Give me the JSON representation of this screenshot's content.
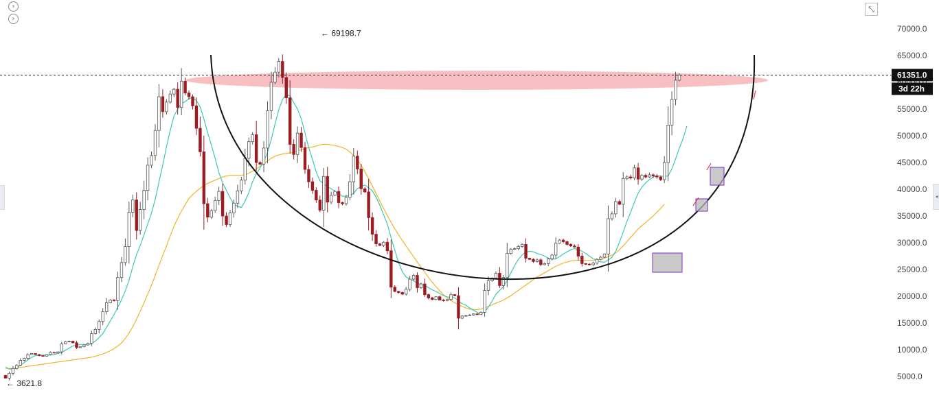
{
  "chart_data": {
    "type": "candlestick",
    "y_axis": {
      "side": "right",
      "ylim": [
        3000,
        72000
      ],
      "ticks": [
        5000,
        10000,
        15000,
        20000,
        25000,
        30000,
        35000,
        40000,
        45000,
        50000,
        55000,
        60000,
        65000,
        70000
      ],
      "tick_labels": [
        "5000.0",
        "10000.0",
        "15000.0",
        "20000.0",
        "25000.0",
        "30000.0",
        "35000.0",
        "40000.0",
        "45000.0",
        "50000.0",
        "55000.0",
        "60000.0",
        "65000.0",
        "70000.0"
      ]
    },
    "current_price": {
      "label": "61351.0",
      "value": 61351,
      "countdown": "3d 22h"
    },
    "annotations": [
      {
        "label": "← 69198.7",
        "value": 69198.7,
        "type": "high"
      },
      {
        "label": "← 3621.8",
        "value": 3621.8,
        "type": "low"
      }
    ],
    "close": [
      4700,
      5600,
      6500,
      7100,
      8000,
      8400,
      9100,
      9300,
      9100,
      8900,
      8800,
      9100,
      9500,
      9400,
      9600,
      11100,
      11500,
      11600,
      11300,
      10400,
      10600,
      10900,
      11200,
      13000,
      13800,
      15300,
      17100,
      18800,
      19300,
      19200,
      23500,
      26300,
      29300,
      35700,
      38000,
      32300,
      36200,
      39800,
      44500,
      46300,
      51000,
      57300,
      54500,
      56300,
      57800,
      58700,
      55300,
      60200,
      58000,
      57300,
      55600,
      51400,
      47000,
      37300,
      34800,
      36000,
      37900,
      39600,
      35000,
      33400,
      35600,
      37400,
      39700,
      41700,
      45800,
      48900,
      50200,
      45000,
      44700,
      47700,
      54700,
      60000,
      61900,
      63900,
      60900,
      57100,
      48400,
      46500,
      50500,
      47800,
      43700,
      41400,
      39800,
      38000,
      36100,
      42400,
      37600,
      38900,
      39600,
      37500,
      37300,
      38500,
      41400,
      46200,
      43800,
      40100,
      39500,
      34700,
      31600,
      29800,
      29500,
      30100,
      28500,
      21700,
      20900,
      20700,
      20400,
      21300,
      23200,
      23900,
      21600,
      22300,
      20300,
      19700,
      19400,
      19900,
      19300,
      19200,
      19400,
      20300,
      20100,
      15900,
      16300,
      16400,
      16500,
      16700,
      16600,
      17000,
      21100,
      22900,
      23400,
      24300,
      22000,
      23500,
      28000,
      28800,
      28900,
      29300,
      29700,
      27100,
      26900,
      26500,
      26800,
      25900,
      26100,
      27000,
      27700,
      29900,
      30500,
      30200,
      29700,
      29400,
      29200,
      27500,
      26100,
      26000,
      25900,
      26200,
      26900,
      27300,
      27900,
      34500,
      35400,
      37700,
      37200,
      42000,
      42300,
      42100,
      44000,
      41900,
      42600,
      42300,
      42700,
      42500,
      42300,
      41800,
      45000,
      52000,
      56800,
      60400,
      61351
    ],
    "ma_fast": [
      6800,
      6400,
      6300,
      6600,
      7100,
      7600,
      8100,
      8600,
      8900,
      9000,
      9000,
      9000,
      9000,
      9100,
      9300,
      9500,
      9900,
      10300,
      10700,
      10900,
      11000,
      11000,
      10900,
      11200,
      11600,
      12300,
      13000,
      14200,
      15400,
      16600,
      17900,
      19400,
      21000,
      23000,
      25500,
      27800,
      29500,
      31500,
      33500,
      35600,
      38100,
      41400,
      44500,
      47900,
      51000,
      53700,
      55000,
      56000,
      56400,
      57000,
      57100,
      56600,
      55400,
      53100,
      50600,
      48200,
      45800,
      43100,
      41200,
      39800,
      38400,
      37200,
      36800,
      36600,
      37800,
      39400,
      41400,
      42900,
      44000,
      45200,
      46900,
      49300,
      52200,
      54900,
      56800,
      57700,
      57500,
      56200,
      55000,
      53200,
      50500,
      47800,
      45600,
      43200,
      41600,
      41000,
      40500,
      40100,
      39600,
      39200,
      38700,
      38700,
      38800,
      39300,
      40100,
      40500,
      40800,
      40300,
      39700,
      38500,
      37000,
      35200,
      33500,
      30900,
      28600,
      26300,
      24600,
      23600,
      23200,
      22900,
      22400,
      22200,
      22000,
      21600,
      21200,
      20900,
      20500,
      20100,
      19900,
      19800,
      19700,
      19100,
      18600,
      18300,
      17800,
      17400,
      17000,
      16700,
      17100,
      18000,
      19100,
      20400,
      21100,
      21800,
      23000,
      24400,
      25700,
      26900,
      27700,
      28300,
      28400,
      28300,
      28000,
      27800,
      27500,
      27100,
      26900,
      27000,
      27400,
      27900,
      28300,
      28700,
      28900,
      28800,
      28400,
      28000,
      27500,
      27000,
      26700,
      26400,
      26400,
      26800,
      27300,
      28400,
      30100,
      32000,
      34000,
      35700,
      37600,
      39300,
      40400,
      41200,
      41800,
      42300,
      42500,
      42500,
      42400,
      42500,
      43800,
      45700,
      47700,
      49500,
      51800
    ],
    "ma_slow": [
      6500,
      6500,
      6500,
      6600,
      6700,
      6800,
      6900,
      7000,
      7100,
      7200,
      7300,
      7400,
      7500,
      7600,
      7700,
      7800,
      7900,
      8000,
      8100,
      8200,
      8300,
      8400,
      8500,
      8600,
      8800,
      9000,
      9200,
      9500,
      9800,
      10200,
      10700,
      11300,
      12100,
      13100,
      14300,
      15700,
      17200,
      18800,
      20400,
      22100,
      23900,
      25800,
      27600,
      29400,
      31300,
      33100,
      34600,
      35900,
      37100,
      38300,
      39000,
      39600,
      40200,
      40700,
      41100,
      41400,
      41700,
      42000,
      42300,
      42500,
      42600,
      42600,
      42600,
      42600,
      42700,
      43000,
      43400,
      43800,
      44300,
      44800,
      45300,
      45800,
      46200,
      46400,
      46600,
      46700,
      46800,
      46900,
      47200,
      47400,
      47600,
      47800,
      47900,
      48100,
      48300,
      48400,
      48400,
      48300,
      48200,
      48000,
      47800,
      47500,
      47000,
      46300,
      45500,
      44500,
      43300,
      42000,
      40600,
      39200,
      37800,
      36400,
      35100,
      33800,
      32600,
      31500,
      30400,
      29400,
      28400,
      27400,
      26400,
      25400,
      24500,
      23500,
      22600,
      21800,
      21000,
      20300,
      19700,
      19200,
      18800,
      18400,
      18100,
      17800,
      17600,
      17500,
      17500,
      17600,
      17800,
      18100,
      18400,
      18700,
      19000,
      19300,
      19700,
      20100,
      20600,
      21100,
      21600,
      22100,
      22600,
      23100,
      23600,
      24000,
      24400,
      24800,
      25200,
      25600,
      25900,
      26200,
      26400,
      26600,
      26700,
      26700,
      26700,
      26700,
      26700,
      26700,
      26800,
      26900,
      27100,
      27400,
      27700,
      28100,
      28700,
      29400,
      30200,
      31000,
      31800,
      32600,
      33200,
      33800,
      34400,
      35000,
      35700,
      36400,
      37200
    ],
    "colors": {
      "up_candle": "#ffffff",
      "down_candle": "#9b1c23",
      "candle_outline": "#555555",
      "ma_fast": "#3cc8b4",
      "ma_slow": "#f0b429",
      "resistance_zone": "#f6a9ad",
      "arc": "#111111",
      "box_fill": "#b7b7b7",
      "box_border": "#7a2dc9",
      "arrow": "#e23b4e"
    },
    "grid": false,
    "legend": "none"
  },
  "controls": {
    "nav_icon_1": "chevron-right-icon",
    "nav_icon_2": "chevron-right-icon",
    "nav_glyph": "›",
    "fullscreen_icon": "fullscreen-exit-icon",
    "fullscreen_glyph": "⤡",
    "side_expand_glyph": "◂"
  }
}
